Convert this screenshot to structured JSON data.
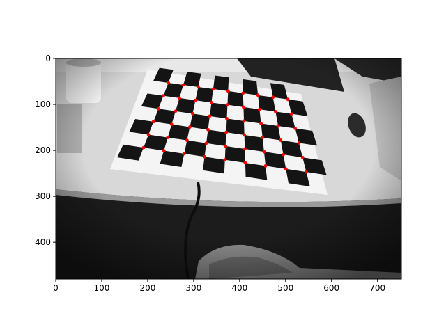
{
  "figure": {
    "type": "image-plot",
    "x_ticks": [
      "0",
      "100",
      "200",
      "300",
      "400",
      "500",
      "600",
      "700"
    ],
    "y_ticks": [
      "0",
      "100",
      "200",
      "300",
      "400"
    ],
    "x_range": [
      0,
      752
    ],
    "y_range": [
      0,
      480
    ],
    "y_inverted": true
  },
  "image": {
    "description_color": "grayscale",
    "marker_color": "#ff0000",
    "grid_rows": 6,
    "grid_cols": 9,
    "corners_anchor": {
      "top_left": [
        245,
        53
      ],
      "top_right": [
        505,
        89
      ],
      "bottom_left": [
        191,
        194
      ],
      "bottom_right": [
        545,
        247
      ]
    }
  }
}
